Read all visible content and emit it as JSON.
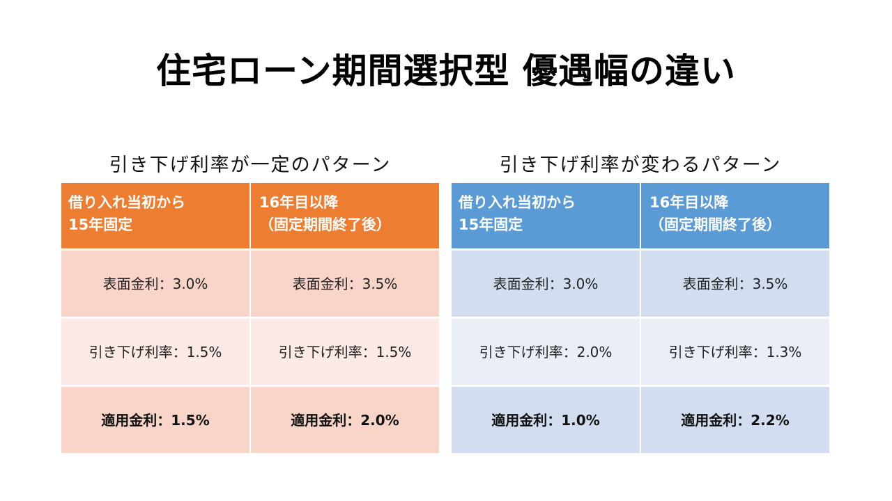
{
  "title": "住宅ローン期間選択型 優遇幅の違い",
  "colors": {
    "orange_header": "#ED7D31",
    "orange_row_dark": "#F8D5C8",
    "orange_row_light": "#FBEAE5",
    "blue_header": "#5B9BD5",
    "blue_row_dark": "#D2DEEF",
    "blue_row_light": "#EAEFF7"
  },
  "panels": [
    {
      "title": "引き下げ利率が一定のパターン",
      "theme": "orange",
      "headers": [
        {
          "line1": "借り入れ当初から",
          "line2": "15年固定"
        },
        {
          "line1": "16年目以降",
          "line2": "（固定期間終了後）"
        }
      ],
      "rows": [
        [
          "表面金利：3.0%",
          "表面金利：3.5%"
        ],
        [
          "引き下げ利率：1.5%",
          "引き下げ利率：1.5%"
        ],
        [
          "適用金利：1.5%",
          "適用金利：2.0%"
        ]
      ]
    },
    {
      "title": "引き下げ利率が変わるパターン",
      "theme": "blue",
      "headers": [
        {
          "line1": "借り入れ当初から",
          "line2": "15年固定"
        },
        {
          "line1": "16年目以降",
          "line2": "（固定期間終了後）"
        }
      ],
      "rows": [
        [
          "表面金利：3.0%",
          "表面金利：3.5%"
        ],
        [
          "引き下げ利率：2.0%",
          "引き下げ利率：1.3%"
        ],
        [
          "適用金利：1.0%",
          "適用金利：2.2%"
        ]
      ]
    }
  ]
}
